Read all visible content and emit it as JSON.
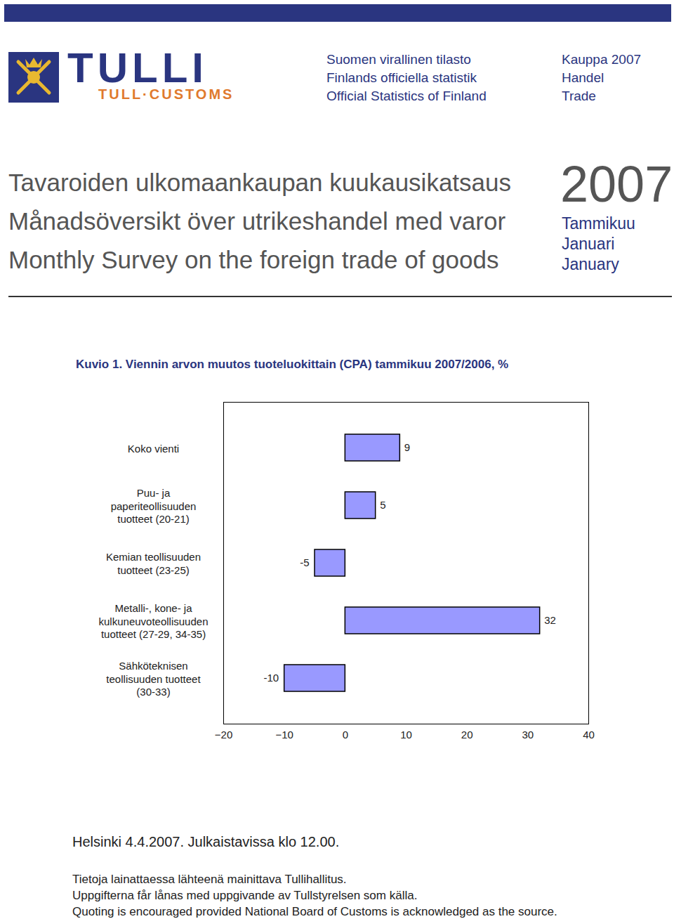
{
  "header": {
    "logo": {
      "name": "TULLI",
      "subname": "TULL·CUSTOMS"
    },
    "series_lines": [
      "Suomen virallinen tilasto",
      "Finlands officiella statistik",
      "Official Statistics of Finland"
    ],
    "topic_lines": [
      "Kauppa 2007",
      "Handel",
      "Trade"
    ]
  },
  "title": {
    "lines": [
      "Tavaroiden ulkomaankaupan kuukausikatsaus",
      "Månadsöversikt över utrikeshandel med varor",
      "Monthly Survey on the foreign trade of goods"
    ],
    "year": "2007",
    "period_lines": [
      "Tammikuu",
      "Januari",
      "January"
    ]
  },
  "chart_data": {
    "type": "bar",
    "orientation": "horizontal",
    "title": "Kuvio 1. Viennin arvon muutos tuoteluokittain (CPA) tammikuu 2007/2006, %",
    "categories": [
      "Koko vienti",
      "Puu- ja\npaperiteollisuuden\ntuotteet (20-21)",
      "Kemian teollisuuden\ntuotteet (23-25)",
      "Metalli-, kone- ja\nkulkuneuvoteollisuuden\ntuotteet (27-29, 34-35)",
      "Sähköteknisen\nteollisuuden tuotteet\n(30-33)"
    ],
    "values": [
      9,
      5,
      -5,
      32,
      -10
    ],
    "color": "#9999ff",
    "xlim": [
      -20,
      40
    ],
    "xticks": [
      -20,
      -10,
      0,
      10,
      20,
      30,
      40
    ],
    "data_labels": true,
    "grid": false
  },
  "footer": {
    "release": "Helsinki 4.4.2007. Julkaistavissa klo 12.00.",
    "notes": [
      "Tietoja lainattaessa lähteenä mainittava Tullihallitus.",
      "Uppgifterna får lånas med uppgivande av Tullstyrelsen som källa.",
      "Quoting is encouraged provided National Board of Customs is acknowledged as the source."
    ]
  }
}
